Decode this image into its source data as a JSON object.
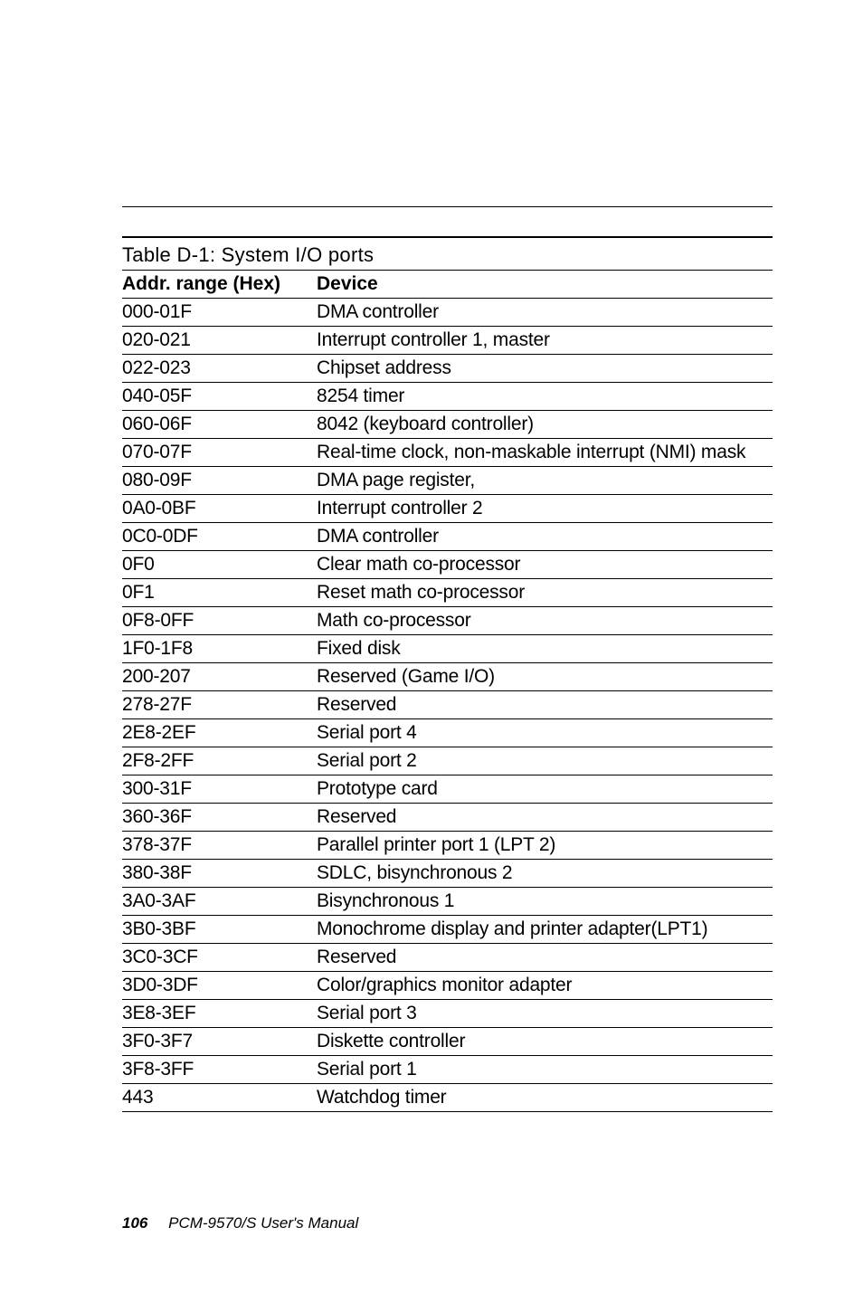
{
  "table_title": "Table D-1: System I/O ports",
  "columns": {
    "addr": "Addr. range (Hex)",
    "device": "Device"
  },
  "rows": [
    {
      "addr": "000-01F",
      "device": "DMA controller"
    },
    {
      "addr": "020-021",
      "device": "Interrupt controller 1, master"
    },
    {
      "addr": "022-023",
      "device": "Chipset address"
    },
    {
      "addr": "040-05F",
      "device": "8254 timer"
    },
    {
      "addr": "060-06F",
      "device": "8042 (keyboard controller)"
    },
    {
      "addr": "070-07F",
      "device": "Real-time clock, non-maskable interrupt (NMI) mask"
    },
    {
      "addr": "080-09F",
      "device": "DMA page register,"
    },
    {
      "addr": "0A0-0BF",
      "device": "Interrupt controller 2"
    },
    {
      "addr": "0C0-0DF",
      "device": "DMA controller"
    },
    {
      "addr": "0F0",
      "device": "Clear math co-processor"
    },
    {
      "addr": "0F1",
      "device": "Reset math co-processor"
    },
    {
      "addr": "0F8-0FF",
      "device": "Math co-processor"
    },
    {
      "addr": "1F0-1F8",
      "device": "Fixed disk"
    },
    {
      "addr": "200-207",
      "device": "Reserved (Game I/O)"
    },
    {
      "addr": "278-27F",
      "device": "Reserved"
    },
    {
      "addr": "2E8-2EF",
      "device": "Serial port 4"
    },
    {
      "addr": "2F8-2FF",
      "device": "Serial port 2"
    },
    {
      "addr": "300-31F",
      "device": "Prototype card"
    },
    {
      "addr": "360-36F",
      "device": "Reserved"
    },
    {
      "addr": "378-37F",
      "device": "Parallel printer port 1 (LPT 2)"
    },
    {
      "addr": "380-38F",
      "device": "SDLC, bisynchronous 2"
    },
    {
      "addr": "3A0-3AF",
      "device": "Bisynchronous 1"
    },
    {
      "addr": "3B0-3BF",
      "device": "Monochrome display and printer adapter(LPT1)"
    },
    {
      "addr": "3C0-3CF",
      "device": "Reserved"
    },
    {
      "addr": "3D0-3DF",
      "device": "Color/graphics monitor adapter"
    },
    {
      "addr": "3E8-3EF",
      "device": "Serial port 3"
    },
    {
      "addr": "3F0-3F7",
      "device": "Diskette controller"
    },
    {
      "addr": "3F8-3FF",
      "device": "Serial port 1"
    },
    {
      "addr": "443",
      "device": "Watchdog timer"
    }
  ],
  "footer": {
    "page_number": "106",
    "text": "PCM-9570/S  User's Manual"
  },
  "style": {
    "page_bg": "#ffffff",
    "text_color": "#000000",
    "rule_color": "#000000",
    "title_fontsize": 22,
    "cell_fontsize": 21,
    "footer_fontsize": 17
  }
}
